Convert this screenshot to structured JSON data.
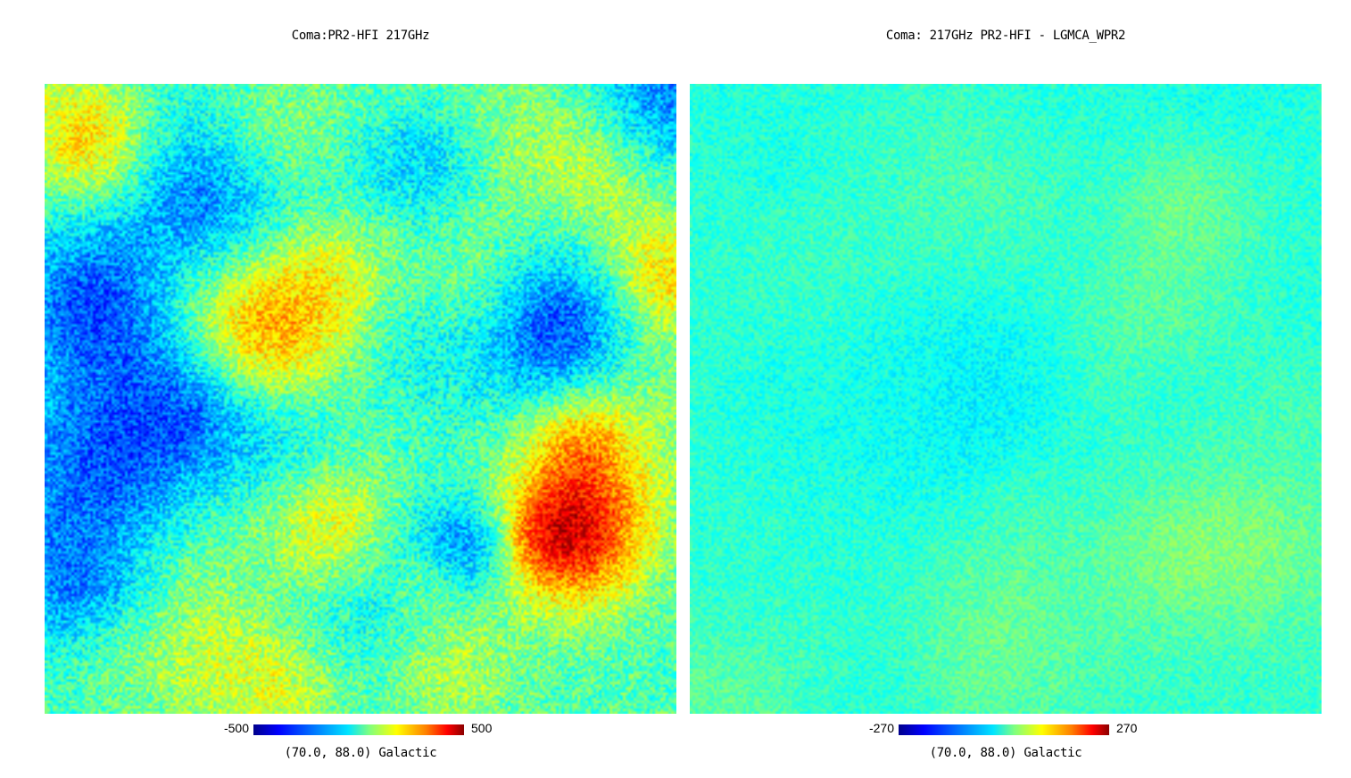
{
  "panels": [
    {
      "title": "Coma:PR2-HFI 217GHz",
      "colorbar": {
        "min": "-500",
        "max": "500"
      },
      "coords": "(70.0, 88.0) Galactic",
      "palette": "jet"
    },
    {
      "title": "Coma: 217GHz PR2-HFI - LGMCA_WPR2",
      "colorbar": {
        "min": "-270",
        "max": "270"
      },
      "coords": "(70.0, 88.0) Galactic",
      "palette": "jet"
    }
  ]
}
